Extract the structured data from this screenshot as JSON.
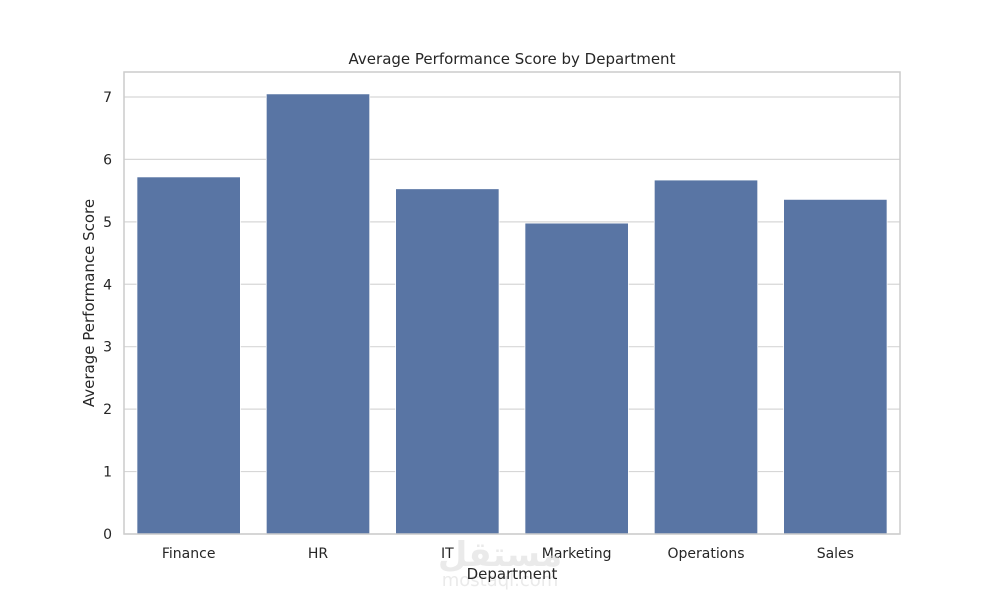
{
  "chart_data": {
    "type": "bar",
    "title": "Average Performance Score by Department",
    "xlabel": "Department",
    "ylabel": "Average Performance Score",
    "categories": [
      "Finance",
      "HR",
      "IT",
      "Marketing",
      "Operations",
      "Sales"
    ],
    "values": [
      5.72,
      7.05,
      5.53,
      4.98,
      5.67,
      5.36
    ],
    "ylim": [
      0,
      7.4
    ],
    "yticks": [
      0,
      1,
      2,
      3,
      4,
      5,
      6,
      7
    ],
    "grid": true,
    "bar_color": "#5975a4",
    "grid_color": "#d7d7d7",
    "frame_color": "#cccccc"
  },
  "watermark": {
    "logo_text": "مستقل",
    "sub_text": "mostaql.com"
  }
}
